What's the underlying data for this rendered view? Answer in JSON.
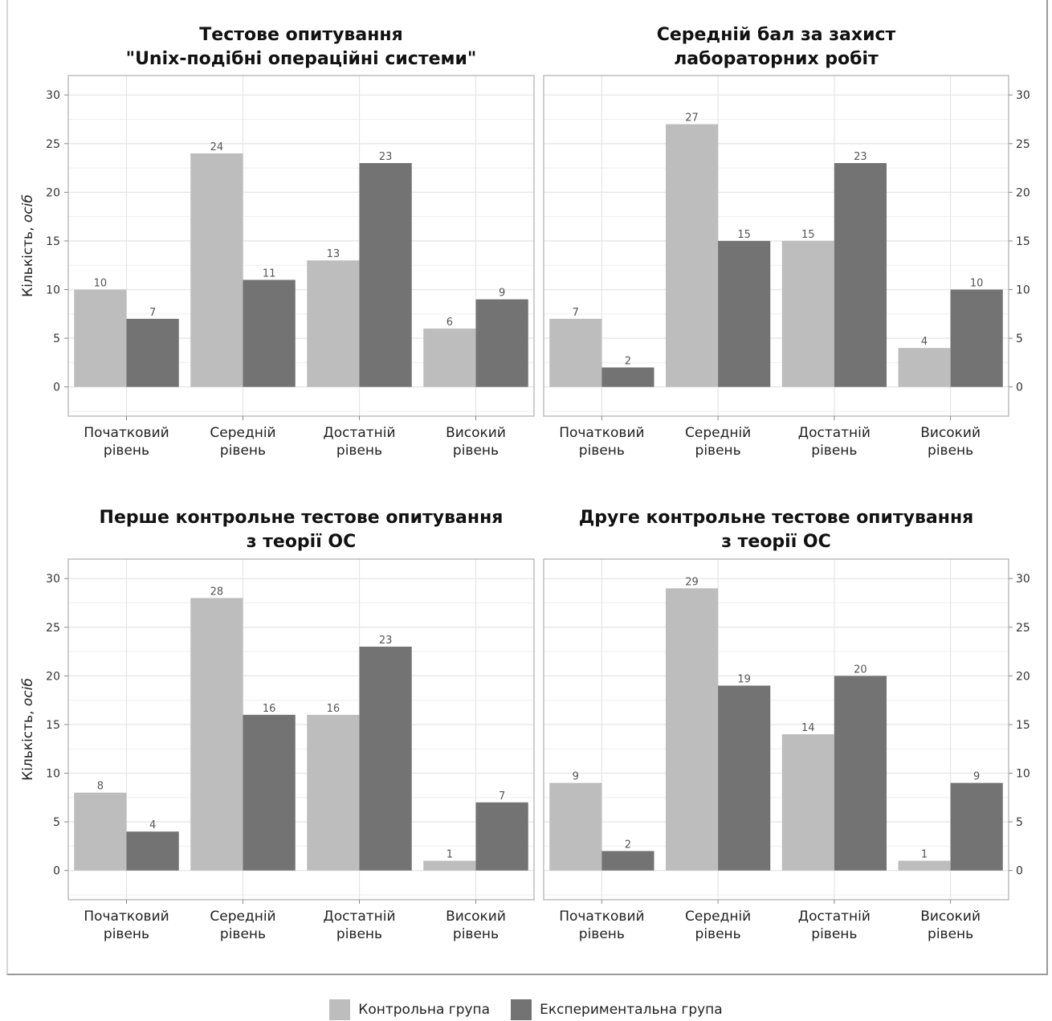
{
  "colors": {
    "control": "#bdbdbd",
    "experimental": "#737373",
    "grid": "#e6e6e6",
    "panel_border": "#b3b3b3",
    "value_label": "#555555"
  },
  "legend": [
    {
      "name": "Контрольна група",
      "color": "#bdbdbd"
    },
    {
      "name": "Експериментальна група",
      "color": "#737373"
    }
  ],
  "chart_data": [
    {
      "type": "bar",
      "title": [
        "Тестове опитування",
        "\"Unix-подібні операційні системи\""
      ],
      "ylabel": "Кількість, осіб",
      "categories": [
        [
          "Початковий",
          "рівень"
        ],
        [
          "Середній",
          "рівень"
        ],
        [
          "Достатній",
          "рівень"
        ],
        [
          "Високий",
          "рівень"
        ]
      ],
      "series": [
        {
          "name": "Контрольна група",
          "values": [
            10,
            24,
            13,
            6
          ]
        },
        {
          "name": "Експериментальна група",
          "values": [
            7,
            11,
            23,
            9
          ]
        }
      ],
      "yticks": [
        0,
        5,
        10,
        15,
        20,
        25,
        30
      ],
      "ylim": [
        -3,
        32
      ],
      "yaxis_side": "left",
      "grid": true
    },
    {
      "type": "bar",
      "title": [
        "Середній бал за захист",
        "лабораторних робіт"
      ],
      "ylabel": "",
      "categories": [
        [
          "Початковий",
          "рівень"
        ],
        [
          "Середній",
          "рівень"
        ],
        [
          "Достатній",
          "рівень"
        ],
        [
          "Високий",
          "рівень"
        ]
      ],
      "series": [
        {
          "name": "Контрольна група",
          "values": [
            7,
            27,
            15,
            4
          ]
        },
        {
          "name": "Експериментальна група",
          "values": [
            2,
            15,
            23,
            10
          ]
        }
      ],
      "yticks": [
        0,
        5,
        10,
        15,
        20,
        25,
        30
      ],
      "ylim": [
        -3,
        32
      ],
      "yaxis_side": "right",
      "grid": true
    },
    {
      "type": "bar",
      "title": [
        "Перше контрольне тестове опитування",
        "з теорії ОС"
      ],
      "ylabel": "Кількість, осіб",
      "categories": [
        [
          "Початковий",
          "рівень"
        ],
        [
          "Середній",
          "рівень"
        ],
        [
          "Достатній",
          "рівень"
        ],
        [
          "Високий",
          "рівень"
        ]
      ],
      "series": [
        {
          "name": "Контрольна група",
          "values": [
            8,
            28,
            16,
            1
          ]
        },
        {
          "name": "Експериментальна група",
          "values": [
            4,
            16,
            23,
            7
          ]
        }
      ],
      "yticks": [
        0,
        5,
        10,
        15,
        20,
        25,
        30
      ],
      "ylim": [
        -3,
        32
      ],
      "yaxis_side": "left",
      "grid": true
    },
    {
      "type": "bar",
      "title": [
        "Друге контрольне тестове опитування",
        "з теорії ОС"
      ],
      "ylabel": "",
      "categories": [
        [
          "Початковий",
          "рівень"
        ],
        [
          "Середній",
          "рівень"
        ],
        [
          "Достатній",
          "рівень"
        ],
        [
          "Високий",
          "рівень"
        ]
      ],
      "series": [
        {
          "name": "Контрольна група",
          "values": [
            9,
            29,
            14,
            1
          ]
        },
        {
          "name": "Експериментальна група",
          "values": [
            2,
            19,
            20,
            9
          ]
        }
      ],
      "yticks": [
        0,
        5,
        10,
        15,
        20,
        25,
        30
      ],
      "ylim": [
        -3,
        32
      ],
      "yaxis_side": "right",
      "grid": true
    }
  ]
}
